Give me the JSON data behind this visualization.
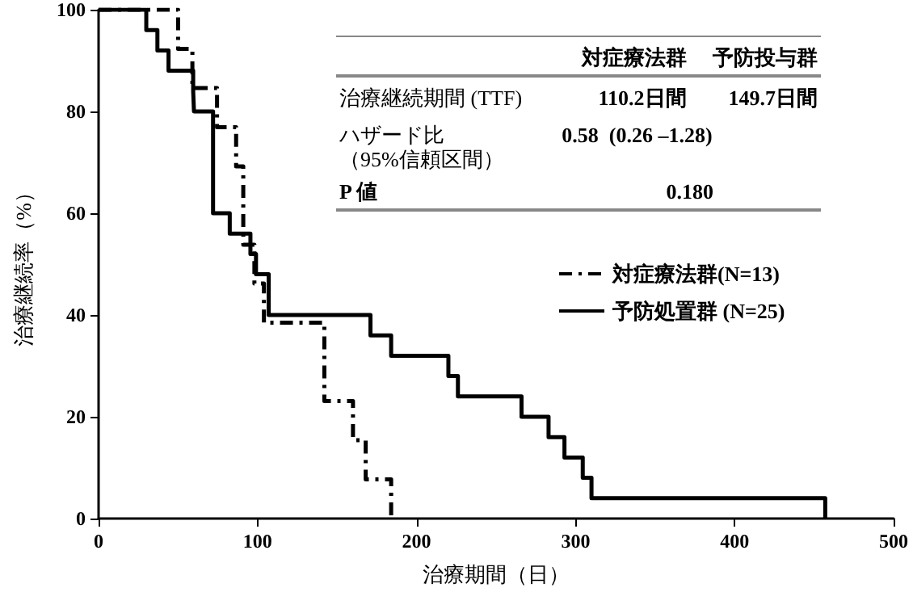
{
  "chart_data": {
    "type": "step",
    "xlabel": "治療期間（日）",
    "ylabel": "治療継続率（%）",
    "series": [
      {
        "name": "対症療法群(N=13)",
        "color": "#000000",
        "line_style": "dashed",
        "x": [
          0,
          50,
          59,
          74.5,
          86.5,
          91,
          98,
          104,
          142,
          160,
          168,
          184
        ],
        "values": [
          100,
          92.3,
          84.6,
          76.9,
          69.2,
          53.8,
          46.2,
          38.5,
          23.1,
          15.4,
          7.7,
          0
        ]
      },
      {
        "name": "予防処置群 (N=25)",
        "color": "#000000",
        "line_style": "solid",
        "x": [
          0,
          30,
          37,
          44,
          59.5,
          60,
          72,
          82.5,
          95.5,
          99,
          107,
          171,
          184,
          220,
          226,
          266,
          283,
          293,
          304.5,
          310,
          457
        ],
        "values": [
          100,
          96,
          92,
          88,
          84,
          80,
          60,
          56,
          52,
          48,
          40,
          36,
          32,
          28,
          24,
          20,
          16,
          12,
          8,
          4,
          0
        ]
      }
    ],
    "xlim": [
      0,
      500
    ],
    "xticks": [
      0,
      100,
      200,
      300,
      400,
      500
    ],
    "ylim": [
      0,
      100
    ],
    "yticks": [
      0,
      20,
      40,
      60,
      80,
      100
    ],
    "grid": false,
    "legend": "right",
    "marker": "none",
    "annotations": [
      "対症療法群",
      "予防投与群",
      "治療継続期間 (TTF)",
      "110.2日間",
      "149.7日間",
      "ハザード比",
      "（95%信頼区間）",
      "0.58  (0.26 –1.28)",
      "P 値",
      "0.180"
    ]
  }
}
